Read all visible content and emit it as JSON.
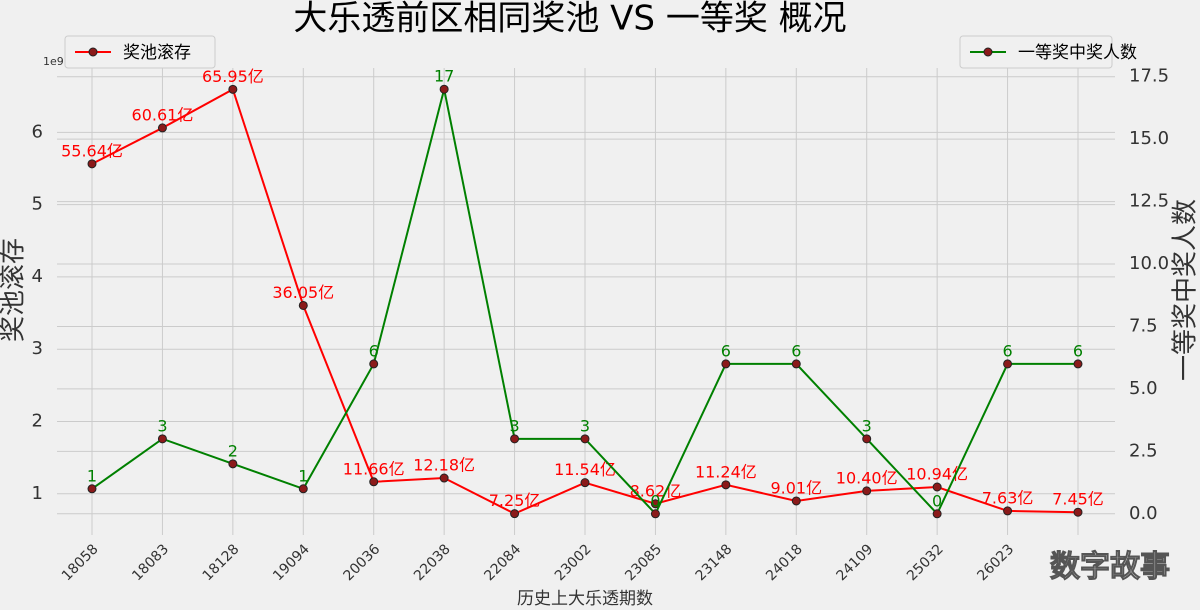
{
  "chart_data": {
    "type": "line",
    "title": "大乐透前区相同奖池 VS 一等奖 概况",
    "x_label": "历史上大乐透期数",
    "y_label": "奖池滚存",
    "y2_label": "一等奖中奖人数",
    "y_offset_label": "1e9",
    "watermark": "数字故事",
    "categories": [
      "18058",
      "18083",
      "18128",
      "19094",
      "20036",
      "22038",
      "22084",
      "23002",
      "23085",
      "23148",
      "24018",
      "24109",
      "25032",
      "26023",
      null
    ],
    "series": [
      {
        "name": "奖池滚存",
        "color": "#ff0000",
        "axis": "y",
        "legend": "upper left",
        "values": [
          5.564,
          6.061,
          6.595,
          3.605,
          1.166,
          1.218,
          0.725,
          1.154,
          0.862,
          1.124,
          0.901,
          1.04,
          1.094,
          0.763,
          0.745
        ],
        "value_labels": [
          "55.64亿",
          "60.61亿",
          "65.95亿",
          "36.05亿",
          "11.66亿",
          "12.18亿",
          "7.25亿",
          "11.54亿",
          "8.62亿",
          "11.24亿",
          "9.01亿",
          "10.40亿",
          "10.94亿",
          "7.63亿",
          "7.45亿"
        ]
      },
      {
        "name": "一等奖中奖人数",
        "color": "#008000",
        "axis": "y2",
        "legend": "upper right",
        "values": [
          1,
          3,
          2,
          1,
          6,
          17,
          3,
          3,
          0,
          6,
          6,
          3,
          0,
          6,
          6
        ]
      }
    ],
    "ylim": [
      0.43,
      6.89
    ],
    "yticks": [
      1,
      2,
      3,
      4,
      5,
      6
    ],
    "y2lim": [
      -0.85,
      17.85
    ],
    "y2ticks": [
      {
        "value": 0,
        "label": "0.0"
      },
      {
        "value": 2.5,
        "label": "2.5"
      },
      {
        "value": 5,
        "label": "5.0"
      },
      {
        "value": 7.5,
        "label": "7.5"
      },
      {
        "value": 10,
        "label": "10.0"
      },
      {
        "value": 12.5,
        "label": "12.5"
      },
      {
        "value": 15,
        "label": "15.0"
      },
      {
        "value": 17.5,
        "label": "17.5"
      }
    ],
    "grid": true
  }
}
